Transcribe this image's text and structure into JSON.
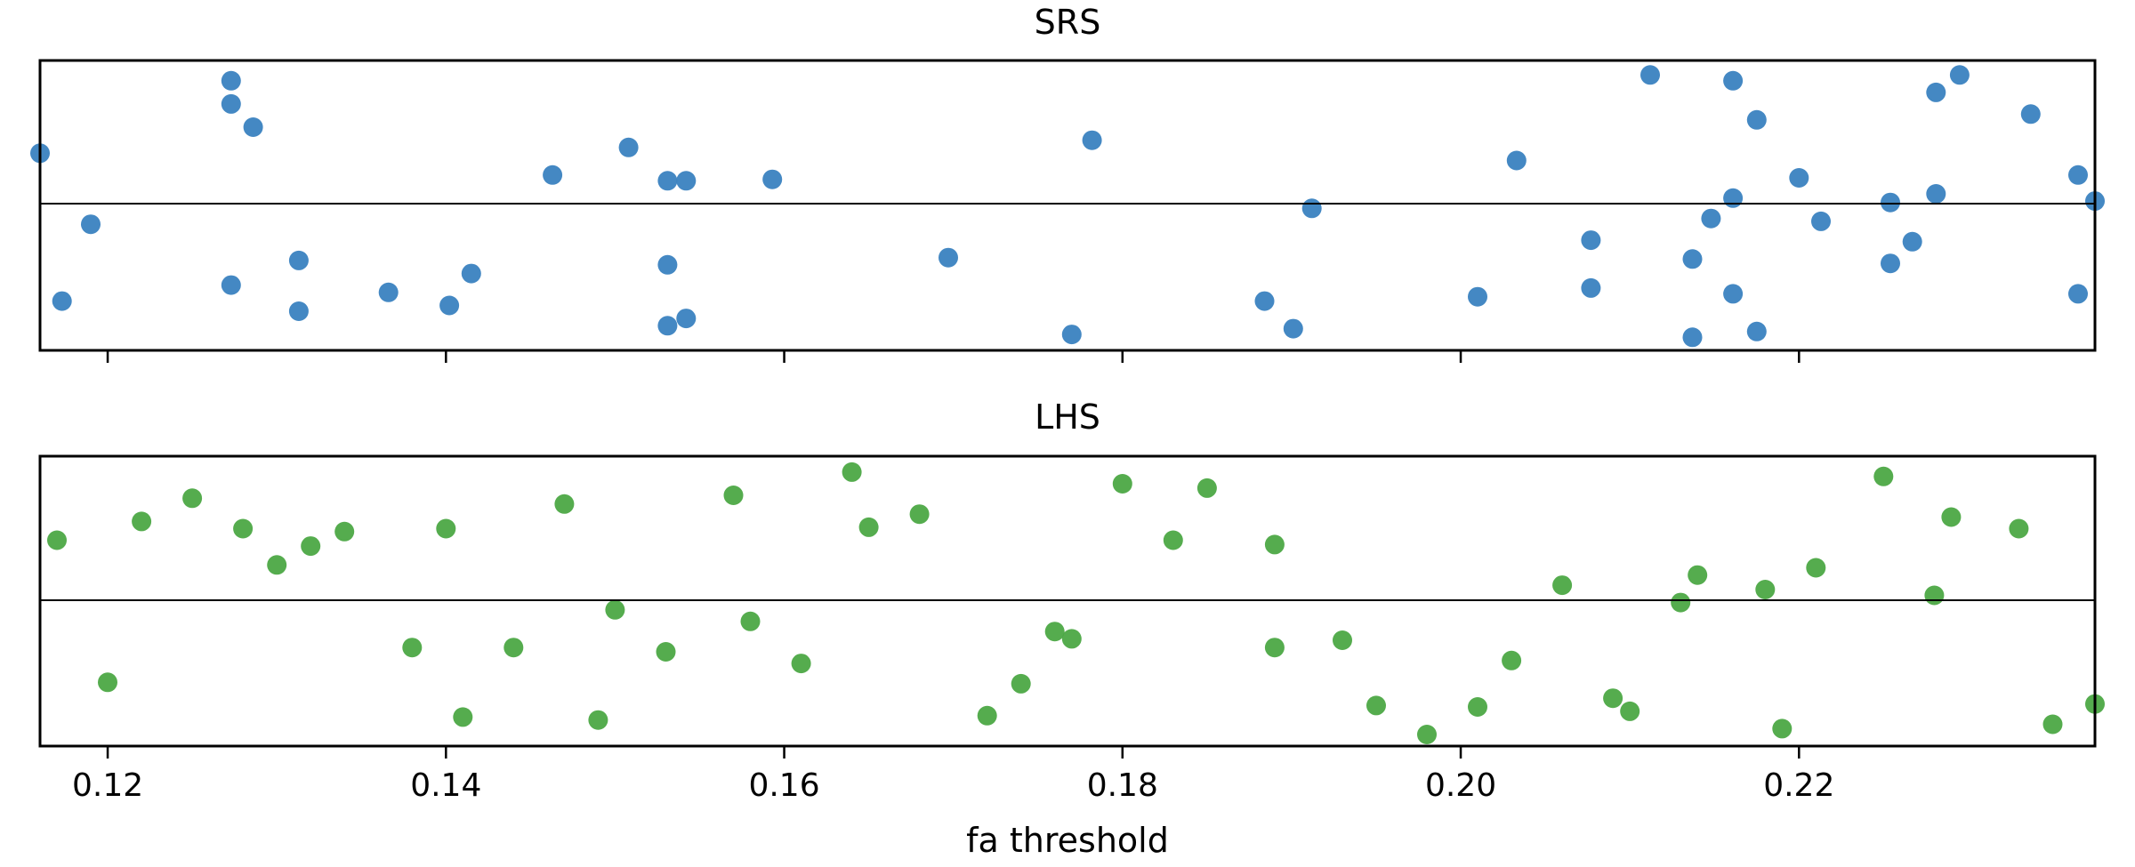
{
  "chart_data": [
    {
      "type": "scatter",
      "title": "SRS",
      "xlabel": "",
      "ylabel": "",
      "xlim": [
        0.116,
        0.2375
      ],
      "ylim": [
        -1,
        1
      ],
      "xticks": [
        0.12,
        0.14,
        0.16,
        0.18,
        0.2,
        0.22
      ],
      "xtick_labels_visible": false,
      "hline_y": 0,
      "grid": false,
      "color": "#3a82c0",
      "points": [
        [
          0.116,
          0.36
        ],
        [
          0.119,
          -0.13
        ],
        [
          0.1173,
          -0.66
        ],
        [
          0.1273,
          0.86
        ],
        [
          0.1273,
          0.7
        ],
        [
          0.1286,
          0.54
        ],
        [
          0.1273,
          -0.55
        ],
        [
          0.1313,
          -0.38
        ],
        [
          0.1313,
          -0.73
        ],
        [
          0.1366,
          -0.6
        ],
        [
          0.1402,
          -0.69
        ],
        [
          0.1415,
          -0.47
        ],
        [
          0.1463,
          0.21
        ],
        [
          0.1508,
          0.4
        ],
        [
          0.1531,
          0.17
        ],
        [
          0.1542,
          0.17
        ],
        [
          0.1531,
          -0.41
        ],
        [
          0.1531,
          -0.83
        ],
        [
          0.1542,
          -0.78
        ],
        [
          0.1593,
          0.18
        ],
        [
          0.1697,
          -0.36
        ],
        [
          0.177,
          -0.89
        ],
        [
          0.1782,
          0.45
        ],
        [
          0.1884,
          -0.66
        ],
        [
          0.1901,
          -0.85
        ],
        [
          0.1912,
          -0.02
        ],
        [
          0.201,
          -0.63
        ],
        [
          0.2033,
          0.31
        ],
        [
          0.2077,
          -0.24
        ],
        [
          0.2077,
          -0.57
        ],
        [
          0.2112,
          0.9
        ],
        [
          0.2137,
          -0.37
        ],
        [
          0.2137,
          -0.91
        ],
        [
          0.2148,
          -0.09
        ],
        [
          0.2161,
          0.86
        ],
        [
          0.2161,
          0.05
        ],
        [
          0.2161,
          -0.61
        ],
        [
          0.2175,
          0.59
        ],
        [
          0.2175,
          -0.87
        ],
        [
          0.22,
          0.19
        ],
        [
          0.2213,
          -0.11
        ],
        [
          0.2254,
          0.02
        ],
        [
          0.2254,
          -0.4
        ],
        [
          0.2267,
          -0.25
        ],
        [
          0.2281,
          0.78
        ],
        [
          0.2281,
          0.08
        ],
        [
          0.2295,
          0.9
        ],
        [
          0.2337,
          0.63
        ],
        [
          0.2365,
          0.21
        ],
        [
          0.2365,
          -0.61
        ],
        [
          0.2375,
          0.03
        ]
      ]
    },
    {
      "type": "scatter",
      "title": "LHS",
      "xlabel": "fa threshold",
      "ylabel": "",
      "xlim": [
        0.116,
        0.2375
      ],
      "ylim": [
        -1,
        1
      ],
      "xticks": [
        0.12,
        0.14,
        0.16,
        0.18,
        0.2,
        0.22
      ],
      "xtick_labels": [
        "0.12",
        "0.14",
        "0.16",
        "0.18",
        "0.20",
        "0.22"
      ],
      "hline_y": 0,
      "grid": false,
      "color": "#4ca845",
      "points": [
        [
          0.117,
          0.42
        ],
        [
          0.12,
          -0.56
        ],
        [
          0.122,
          0.55
        ],
        [
          0.125,
          0.71
        ],
        [
          0.128,
          0.5
        ],
        [
          0.13,
          0.25
        ],
        [
          0.132,
          0.38
        ],
        [
          0.134,
          0.48
        ],
        [
          0.138,
          -0.32
        ],
        [
          0.14,
          0.5
        ],
        [
          0.141,
          -0.8
        ],
        [
          0.144,
          -0.32
        ],
        [
          0.147,
          0.67
        ],
        [
          0.149,
          -0.82
        ],
        [
          0.15,
          -0.06
        ],
        [
          0.153,
          -0.35
        ],
        [
          0.157,
          0.73
        ],
        [
          0.158,
          -0.14
        ],
        [
          0.161,
          -0.43
        ],
        [
          0.164,
          0.89
        ],
        [
          0.165,
          0.51
        ],
        [
          0.168,
          0.6
        ],
        [
          0.172,
          -0.79
        ],
        [
          0.174,
          -0.57
        ],
        [
          0.176,
          -0.21
        ],
        [
          0.177,
          -0.26
        ],
        [
          0.18,
          0.81
        ],
        [
          0.183,
          0.42
        ],
        [
          0.185,
          0.78
        ],
        [
          0.189,
          0.39
        ],
        [
          0.189,
          -0.32
        ],
        [
          0.193,
          -0.27
        ],
        [
          0.195,
          -0.72
        ],
        [
          0.198,
          -0.92
        ],
        [
          0.201,
          -0.73
        ],
        [
          0.203,
          -0.41
        ],
        [
          0.206,
          0.11
        ],
        [
          0.209,
          -0.67
        ],
        [
          0.21,
          -0.76
        ],
        [
          0.213,
          -0.01
        ],
        [
          0.214,
          0.18
        ],
        [
          0.218,
          0.08
        ],
        [
          0.219,
          -0.88
        ],
        [
          0.221,
          0.23
        ],
        [
          0.225,
          0.86
        ],
        [
          0.228,
          0.04
        ],
        [
          0.229,
          0.58
        ],
        [
          0.233,
          0.5
        ],
        [
          0.235,
          -0.85
        ],
        [
          0.2375,
          -0.71
        ]
      ]
    }
  ]
}
